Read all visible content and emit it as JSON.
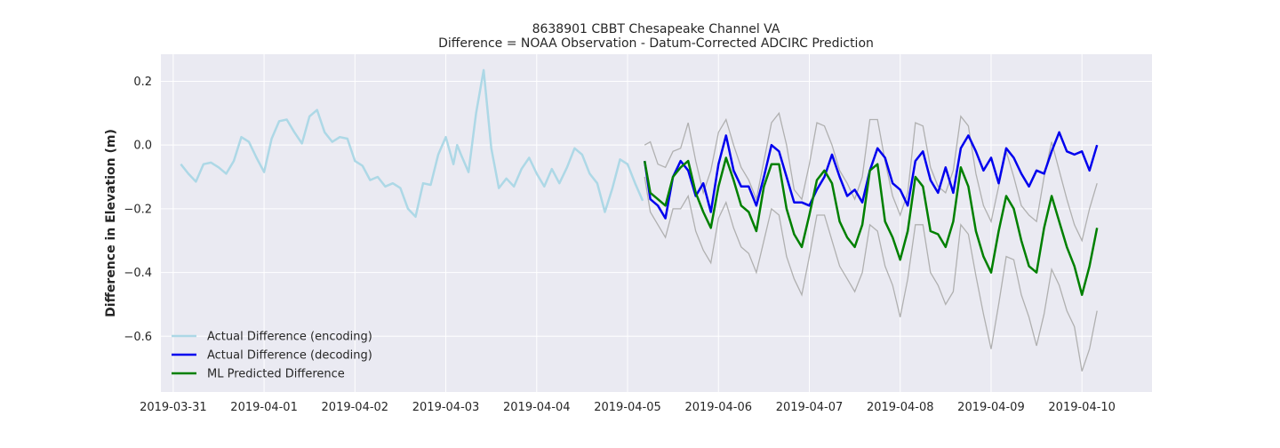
{
  "chart_data": {
    "type": "line",
    "title": "8638901 CBBT Chesapeake Channel VA",
    "subtitle": "Difference = NOAA Observation - Datum-Corrected ADCIRC Prediction",
    "xlabel": "",
    "ylabel": "Difference in Elevation (m)",
    "x_ticks": [
      "2019-03-31",
      "2019-04-01",
      "2019-04-02",
      "2019-04-03",
      "2019-04-04",
      "2019-04-05",
      "2019-04-06",
      "2019-04-07",
      "2019-04-08",
      "2019-04-09",
      "2019-04-10"
    ],
    "y_ticks": [
      "0.2",
      "0.0",
      "−0.2",
      "−0.4",
      "−0.6"
    ],
    "xlim": [
      "2019-03-30T20:45",
      "2019-04-10T18:30"
    ],
    "ylim": [
      -0.775,
      0.285
    ],
    "grid": true,
    "legend_position": "lower-left",
    "colors": {
      "background": "#eaeaf2",
      "grid": "#ffffff",
      "encoding": "#add8e6",
      "decoding": "#0000ee",
      "predicted": "#008000",
      "band": "#b0b0b0"
    },
    "series": [
      {
        "name": "Actual Difference (encoding)",
        "color": "#add8e6",
        "x": [
          "2019-03-31T02:00",
          "2019-03-31T04:00",
          "2019-03-31T06:00",
          "2019-03-31T08:00",
          "2019-03-31T10:00",
          "2019-03-31T12:00",
          "2019-03-31T14:00",
          "2019-03-31T16:00",
          "2019-03-31T18:00",
          "2019-03-31T20:00",
          "2019-03-31T22:00",
          "2019-04-01T00:00",
          "2019-04-01T02:00",
          "2019-04-01T04:00",
          "2019-04-01T06:00",
          "2019-04-01T08:00",
          "2019-04-01T10:00",
          "2019-04-01T12:00",
          "2019-04-01T14:00",
          "2019-04-01T16:00",
          "2019-04-01T18:00",
          "2019-04-01T20:00",
          "2019-04-01T22:00",
          "2019-04-02T00:00",
          "2019-04-02T02:00",
          "2019-04-02T04:00",
          "2019-04-02T06:00",
          "2019-04-02T08:00",
          "2019-04-02T10:00",
          "2019-04-02T12:00",
          "2019-04-02T14:00",
          "2019-04-02T16:00",
          "2019-04-02T18:00",
          "2019-04-02T20:00",
          "2019-04-02T22:00",
          "2019-04-03T00:00",
          "2019-04-03T02:00",
          "2019-04-03T03:00",
          "2019-04-03T04:00",
          "2019-04-03T06:00",
          "2019-04-03T08:00",
          "2019-04-03T10:00",
          "2019-04-03T12:00",
          "2019-04-03T14:00",
          "2019-04-03T16:00",
          "2019-04-03T18:00",
          "2019-04-03T20:00",
          "2019-04-03T22:00",
          "2019-04-04T00:00",
          "2019-04-04T02:00",
          "2019-04-04T04:00",
          "2019-04-04T06:00",
          "2019-04-04T08:00",
          "2019-04-04T10:00",
          "2019-04-04T12:00",
          "2019-04-04T14:00",
          "2019-04-04T16:00",
          "2019-04-04T18:00",
          "2019-04-04T20:00",
          "2019-04-04T22:00",
          "2019-04-05T00:00",
          "2019-04-05T02:00",
          "2019-04-05T04:00"
        ],
        "values": [
          -0.06,
          -0.09,
          -0.115,
          -0.06,
          -0.055,
          -0.07,
          -0.09,
          -0.05,
          0.025,
          0.01,
          -0.04,
          -0.085,
          0.02,
          0.075,
          0.08,
          0.04,
          0.005,
          0.09,
          0.11,
          0.04,
          0.01,
          0.025,
          0.02,
          -0.05,
          -0.065,
          -0.11,
          -0.1,
          -0.13,
          -0.12,
          -0.135,
          -0.2,
          -0.225,
          -0.12,
          -0.125,
          -0.03,
          0.025,
          -0.06,
          0.0,
          -0.03,
          -0.085,
          0.1,
          0.235,
          -0.01,
          -0.135,
          -0.105,
          -0.13,
          -0.075,
          -0.04,
          -0.09,
          -0.13,
          -0.075,
          -0.12,
          -0.07,
          -0.01,
          -0.03,
          -0.09,
          -0.12,
          -0.21,
          -0.135,
          -0.045,
          -0.06,
          -0.12,
          -0.175
        ]
      },
      {
        "name": "Actual Difference (decoding)",
        "color": "#0000ee",
        "x": [
          "2019-04-05T04:30",
          "2019-04-05T06:00",
          "2019-04-05T08:00",
          "2019-04-05T10:00",
          "2019-04-05T12:00",
          "2019-04-05T14:00",
          "2019-04-05T16:00",
          "2019-04-05T18:00",
          "2019-04-05T20:00",
          "2019-04-05T22:00",
          "2019-04-06T00:00",
          "2019-04-06T02:00",
          "2019-04-06T04:00",
          "2019-04-06T06:00",
          "2019-04-06T08:00",
          "2019-04-06T10:00",
          "2019-04-06T12:00",
          "2019-04-06T14:00",
          "2019-04-06T16:00",
          "2019-04-06T18:00",
          "2019-04-06T20:00",
          "2019-04-06T22:00",
          "2019-04-07T00:00",
          "2019-04-07T02:00",
          "2019-04-07T04:00",
          "2019-04-07T06:00",
          "2019-04-07T08:00",
          "2019-04-07T10:00",
          "2019-04-07T12:00",
          "2019-04-07T14:00",
          "2019-04-07T16:00",
          "2019-04-07T18:00",
          "2019-04-07T20:00",
          "2019-04-07T22:00",
          "2019-04-08T00:00",
          "2019-04-08T02:00",
          "2019-04-08T04:00",
          "2019-04-08T06:00",
          "2019-04-08T08:00",
          "2019-04-08T10:00",
          "2019-04-08T12:00",
          "2019-04-08T14:00",
          "2019-04-08T16:00",
          "2019-04-08T18:00",
          "2019-04-08T20:00",
          "2019-04-08T22:00",
          "2019-04-09T00:00",
          "2019-04-09T02:00",
          "2019-04-09T04:00",
          "2019-04-09T06:00",
          "2019-04-09T08:00",
          "2019-04-09T10:00",
          "2019-04-09T12:00",
          "2019-04-09T14:00",
          "2019-04-09T16:00",
          "2019-04-09T18:00",
          "2019-04-09T20:00",
          "2019-04-09T22:00",
          "2019-04-10T00:00",
          "2019-04-10T02:00",
          "2019-04-10T04:00"
        ],
        "values": [
          -0.05,
          -0.17,
          -0.19,
          -0.23,
          -0.1,
          -0.05,
          -0.08,
          -0.16,
          -0.12,
          -0.21,
          -0.06,
          0.03,
          -0.08,
          -0.13,
          -0.13,
          -0.19,
          -0.1,
          0.0,
          -0.02,
          -0.1,
          -0.18,
          -0.18,
          -0.19,
          -0.14,
          -0.1,
          -0.03,
          -0.1,
          -0.16,
          -0.14,
          -0.18,
          -0.08,
          -0.01,
          -0.04,
          -0.12,
          -0.14,
          -0.19,
          -0.05,
          -0.02,
          -0.11,
          -0.15,
          -0.07,
          -0.15,
          -0.01,
          0.03,
          -0.02,
          -0.08,
          -0.04,
          -0.12,
          -0.01,
          -0.04,
          -0.09,
          -0.13,
          -0.08,
          -0.09,
          -0.02,
          0.04,
          -0.02,
          -0.03,
          -0.02,
          -0.08,
          0.0
        ]
      },
      {
        "name": "ML Predicted Difference",
        "color": "#008000",
        "x": [
          "2019-04-05T04:30",
          "2019-04-05T06:00",
          "2019-04-05T08:00",
          "2019-04-05T10:00",
          "2019-04-05T12:00",
          "2019-04-05T14:00",
          "2019-04-05T16:00",
          "2019-04-05T18:00",
          "2019-04-05T20:00",
          "2019-04-05T22:00",
          "2019-04-06T00:00",
          "2019-04-06T02:00",
          "2019-04-06T04:00",
          "2019-04-06T06:00",
          "2019-04-06T08:00",
          "2019-04-06T10:00",
          "2019-04-06T12:00",
          "2019-04-06T14:00",
          "2019-04-06T16:00",
          "2019-04-06T18:00",
          "2019-04-06T20:00",
          "2019-04-06T22:00",
          "2019-04-07T00:00",
          "2019-04-07T02:00",
          "2019-04-07T04:00",
          "2019-04-07T06:00",
          "2019-04-07T08:00",
          "2019-04-07T10:00",
          "2019-04-07T12:00",
          "2019-04-07T14:00",
          "2019-04-07T16:00",
          "2019-04-07T18:00",
          "2019-04-07T20:00",
          "2019-04-07T22:00",
          "2019-04-08T00:00",
          "2019-04-08T02:00",
          "2019-04-08T04:00",
          "2019-04-08T06:00",
          "2019-04-08T08:00",
          "2019-04-08T10:00",
          "2019-04-08T12:00",
          "2019-04-08T14:00",
          "2019-04-08T16:00",
          "2019-04-08T18:00",
          "2019-04-08T20:00",
          "2019-04-08T22:00",
          "2019-04-09T00:00",
          "2019-04-09T02:00",
          "2019-04-09T04:00",
          "2019-04-09T06:00",
          "2019-04-09T08:00",
          "2019-04-09T10:00",
          "2019-04-09T12:00",
          "2019-04-09T14:00",
          "2019-04-09T16:00",
          "2019-04-09T18:00",
          "2019-04-09T20:00",
          "2019-04-09T22:00",
          "2019-04-10T00:00",
          "2019-04-10T02:00",
          "2019-04-10T04:00"
        ],
        "values": [
          -0.05,
          -0.15,
          -0.17,
          -0.19,
          -0.1,
          -0.07,
          -0.05,
          -0.15,
          -0.21,
          -0.26,
          -0.13,
          -0.04,
          -0.11,
          -0.19,
          -0.21,
          -0.27,
          -0.13,
          -0.06,
          -0.06,
          -0.2,
          -0.28,
          -0.32,
          -0.22,
          -0.11,
          -0.08,
          -0.12,
          -0.24,
          -0.29,
          -0.32,
          -0.25,
          -0.08,
          -0.06,
          -0.24,
          -0.29,
          -0.36,
          -0.27,
          -0.1,
          -0.13,
          -0.27,
          -0.28,
          -0.32,
          -0.24,
          -0.07,
          -0.13,
          -0.27,
          -0.35,
          -0.4,
          -0.27,
          -0.16,
          -0.2,
          -0.3,
          -0.38,
          -0.4,
          -0.26,
          -0.16,
          -0.24,
          -0.32,
          -0.38,
          -0.47,
          -0.38,
          -0.26
        ]
      }
    ],
    "band": {
      "color": "#b0b0b0",
      "x": [
        "2019-04-05T04:30",
        "2019-04-05T06:00",
        "2019-04-05T08:00",
        "2019-04-05T10:00",
        "2019-04-05T12:00",
        "2019-04-05T14:00",
        "2019-04-05T16:00",
        "2019-04-05T18:00",
        "2019-04-05T20:00",
        "2019-04-05T22:00",
        "2019-04-06T00:00",
        "2019-04-06T02:00",
        "2019-04-06T04:00",
        "2019-04-06T06:00",
        "2019-04-06T08:00",
        "2019-04-06T10:00",
        "2019-04-06T12:00",
        "2019-04-06T14:00",
        "2019-04-06T16:00",
        "2019-04-06T18:00",
        "2019-04-06T20:00",
        "2019-04-06T22:00",
        "2019-04-07T00:00",
        "2019-04-07T02:00",
        "2019-04-07T04:00",
        "2019-04-07T06:00",
        "2019-04-07T08:00",
        "2019-04-07T10:00",
        "2019-04-07T12:00",
        "2019-04-07T14:00",
        "2019-04-07T16:00",
        "2019-04-07T18:00",
        "2019-04-07T20:00",
        "2019-04-07T22:00",
        "2019-04-08T00:00",
        "2019-04-08T02:00",
        "2019-04-08T04:00",
        "2019-04-08T06:00",
        "2019-04-08T08:00",
        "2019-04-08T10:00",
        "2019-04-08T12:00",
        "2019-04-08T14:00",
        "2019-04-08T16:00",
        "2019-04-08T18:00",
        "2019-04-08T20:00",
        "2019-04-08T22:00",
        "2019-04-09T00:00",
        "2019-04-09T02:00",
        "2019-04-09T04:00",
        "2019-04-09T06:00",
        "2019-04-09T08:00",
        "2019-04-09T10:00",
        "2019-04-09T12:00",
        "2019-04-09T14:00",
        "2019-04-09T16:00",
        "2019-04-09T18:00",
        "2019-04-09T20:00",
        "2019-04-09T22:00",
        "2019-04-10T00:00",
        "2019-04-10T02:00",
        "2019-04-10T04:00"
      ],
      "upper": [
        0.0,
        0.01,
        -0.06,
        -0.07,
        -0.02,
        -0.01,
        0.07,
        -0.05,
        -0.15,
        -0.08,
        0.04,
        0.08,
        0.0,
        -0.07,
        -0.11,
        -0.17,
        -0.05,
        0.07,
        0.1,
        0.0,
        -0.14,
        -0.17,
        -0.06,
        0.07,
        0.06,
        0.0,
        -0.08,
        -0.12,
        -0.17,
        -0.1,
        0.08,
        0.08,
        -0.05,
        -0.16,
        -0.22,
        -0.15,
        0.07,
        0.06,
        -0.07,
        -0.13,
        -0.15,
        -0.08,
        0.09,
        0.06,
        -0.09,
        -0.19,
        -0.24,
        -0.13,
        -0.02,
        -0.1,
        -0.19,
        -0.22,
        -0.24,
        -0.1,
        0.01,
        -0.08,
        -0.17,
        -0.25,
        -0.3,
        -0.2,
        -0.12
      ],
      "lower": [
        -0.1,
        -0.21,
        -0.25,
        -0.29,
        -0.2,
        -0.2,
        -0.16,
        -0.27,
        -0.33,
        -0.37,
        -0.23,
        -0.18,
        -0.26,
        -0.32,
        -0.34,
        -0.4,
        -0.3,
        -0.2,
        -0.22,
        -0.35,
        -0.42,
        -0.47,
        -0.35,
        -0.22,
        -0.22,
        -0.3,
        -0.38,
        -0.42,
        -0.46,
        -0.4,
        -0.25,
        -0.27,
        -0.38,
        -0.44,
        -0.54,
        -0.42,
        -0.25,
        -0.25,
        -0.4,
        -0.44,
        -0.5,
        -0.46,
        -0.25,
        -0.28,
        -0.41,
        -0.53,
        -0.64,
        -0.5,
        -0.35,
        -0.36,
        -0.47,
        -0.54,
        -0.63,
        -0.53,
        -0.39,
        -0.44,
        -0.52,
        -0.57,
        -0.71,
        -0.64,
        -0.52
      ]
    }
  }
}
